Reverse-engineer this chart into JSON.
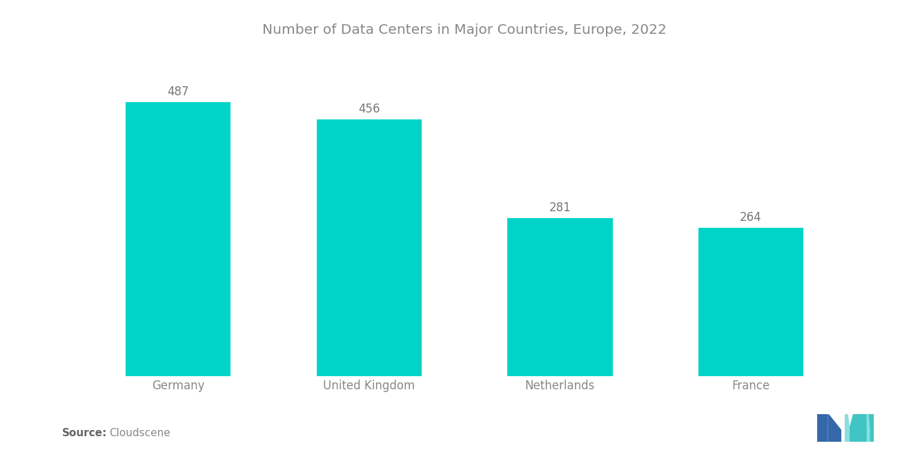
{
  "title": "Number of Data Centers in Major Countries, Europe, 2022",
  "categories": [
    "Germany",
    "United Kingdom",
    "Netherlands",
    "France"
  ],
  "values": [
    487,
    456,
    281,
    264
  ],
  "bar_color": "#00D4C8",
  "background_color": "#ffffff",
  "label_color": "#888888",
  "value_label_color": "#777777",
  "source_bold": "Source:",
  "source_text": "Cloudscene",
  "title_fontsize": 14.5,
  "label_fontsize": 12,
  "value_fontsize": 12,
  "source_fontsize": 11,
  "ylim": [
    0,
    570
  ]
}
